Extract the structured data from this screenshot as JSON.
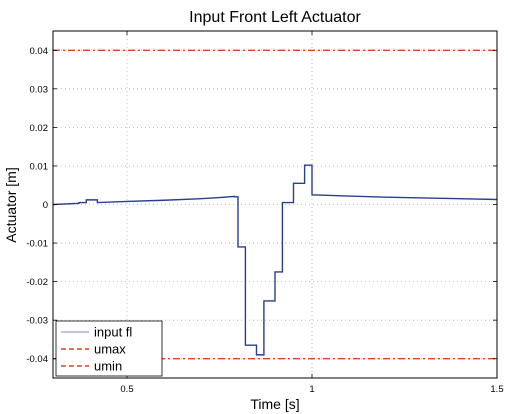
{
  "chart_data": {
    "type": "line",
    "title": "Input Front Left Actuator",
    "xlabel": "Time [s]",
    "ylabel": "Actuator [m]",
    "xlim": [
      0.3,
      1.5
    ],
    "ylim": [
      -0.045,
      0.045
    ],
    "xticks": [
      0.5,
      1,
      1.5
    ],
    "xtick_labels": [
      "0.5",
      "1",
      "1.5"
    ],
    "yticks": [
      -0.04,
      -0.03,
      -0.02,
      -0.01,
      0,
      0.01,
      0.02,
      0.03,
      0.04
    ],
    "ytick_labels": [
      "-0.04",
      "-0.03",
      "-0.02",
      "-0.01",
      "0",
      "0.01",
      "0.02",
      "0.03",
      "0.04"
    ],
    "grid": true,
    "legend_position": "bottom-left",
    "series": [
      {
        "name": "input fl",
        "color": "#2a3f8f",
        "style": "solid",
        "x": [
          0.3,
          0.37,
          0.37,
          0.39,
          0.39,
          0.42,
          0.42,
          0.5,
          0.6,
          0.7,
          0.75,
          0.79,
          0.79,
          0.8,
          0.8,
          0.82,
          0.82,
          0.83,
          0.83,
          0.85,
          0.85,
          0.87,
          0.87,
          0.9,
          0.9,
          0.92,
          0.92,
          0.95,
          0.95,
          0.96,
          0.96,
          0.98,
          0.98,
          1.0,
          1.0,
          1.1,
          1.2,
          1.3,
          1.4,
          1.5
        ],
        "y": [
          0.0,
          0.0003,
          0.0005,
          0.0005,
          0.0012,
          0.0012,
          0.0005,
          0.0008,
          0.0011,
          0.0015,
          0.0018,
          0.0021,
          0.002,
          0.002,
          -0.011,
          -0.011,
          -0.0365,
          -0.0365,
          -0.0365,
          -0.0365,
          -0.039,
          -0.039,
          -0.025,
          -0.025,
          -0.0175,
          -0.0175,
          0.0005,
          0.0005,
          0.0055,
          0.0055,
          0.0055,
          0.0055,
          0.0102,
          0.0102,
          0.0025,
          0.0022,
          0.0019,
          0.0017,
          0.0015,
          0.0013
        ]
      },
      {
        "name": "umax",
        "color": "#e8401c",
        "style": "dashdot",
        "x": [
          0.3,
          1.5
        ],
        "y": [
          0.04,
          0.04
        ]
      },
      {
        "name": "umin",
        "color": "#e8401c",
        "style": "dashdot",
        "x": [
          0.3,
          1.5
        ],
        "y": [
          -0.04,
          -0.04
        ]
      }
    ]
  }
}
